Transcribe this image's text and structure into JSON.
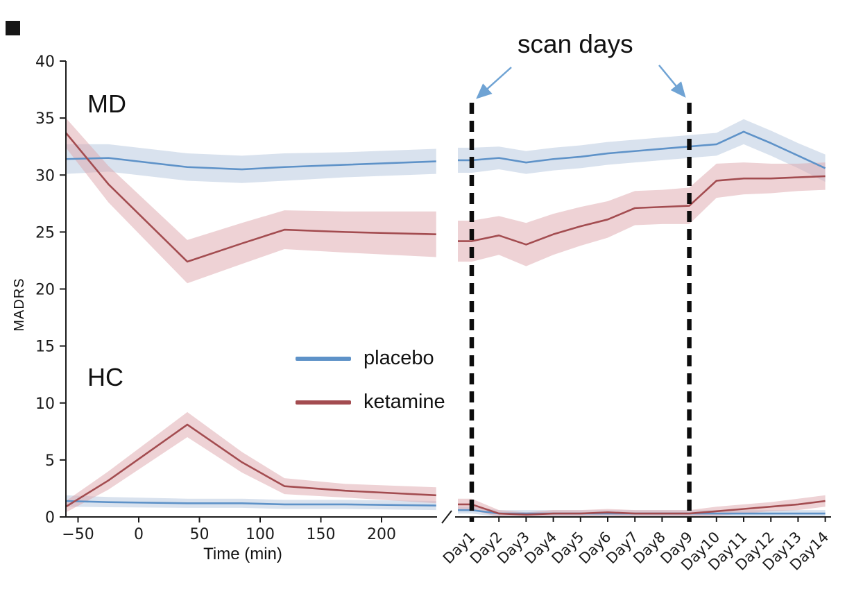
{
  "figure": {
    "md_label": "MD",
    "hc_label": "HC",
    "ylabel": "MADRS",
    "xlabel_left": "Time (min)",
    "scan_annotation": "scan days",
    "legend": {
      "placebo": "placebo",
      "ketamine": "ketamine"
    }
  },
  "colors": {
    "placebo_line": "#5e92c8",
    "placebo_band": "#b3c6dd",
    "ketamine_line": "#a34c50",
    "ketamine_band": "#dda6ab",
    "scan_line": "#0c0c0c",
    "arrow": "#6fa3d4",
    "axis": "#1a1a1a",
    "tick_text": "#1a1a1a"
  },
  "chart_data": [
    {
      "panel": "acute-timecourse",
      "type": "line",
      "title": "",
      "xlabel": "Time (min)",
      "ylabel": "MADRS",
      "ylim": [
        0,
        40
      ],
      "yticks": [
        0,
        5,
        10,
        15,
        20,
        25,
        30,
        35,
        40
      ],
      "xticks": [
        -50,
        0,
        50,
        100,
        150,
        200
      ],
      "x": [
        -60,
        -25,
        40,
        85,
        120,
        170,
        245
      ],
      "grid": false,
      "series": [
        {
          "name": "MD placebo",
          "color_key": "placebo",
          "values": [
            31.4,
            31.5,
            30.7,
            30.5,
            30.7,
            30.9,
            31.2
          ],
          "err": [
            1.3,
            1.2,
            1.2,
            1.2,
            1.2,
            1.1,
            1.1
          ]
        },
        {
          "name": "MD ketamine",
          "color_key": "ketamine",
          "values": [
            33.7,
            29.2,
            22.4,
            24.0,
            25.2,
            25.0,
            24.8
          ],
          "err": [
            1.3,
            1.6,
            1.9,
            1.8,
            1.7,
            1.8,
            2.0
          ]
        },
        {
          "name": "HC placebo",
          "color_key": "placebo",
          "values": [
            1.4,
            1.3,
            1.2,
            1.2,
            1.1,
            1.1,
            1.0
          ],
          "err": [
            0.5,
            0.45,
            0.4,
            0.4,
            0.4,
            0.4,
            0.4
          ]
        },
        {
          "name": "HC ketamine",
          "color_key": "ketamine",
          "values": [
            0.9,
            3.2,
            8.1,
            4.8,
            2.7,
            2.3,
            1.9
          ],
          "err": [
            0.5,
            0.8,
            1.1,
            0.9,
            0.7,
            0.6,
            0.7
          ]
        }
      ]
    },
    {
      "panel": "followup-days",
      "type": "line",
      "ylim": [
        0,
        40
      ],
      "categories": [
        "Day1",
        "Day2",
        "Day3",
        "Day4",
        "Day5",
        "Day6",
        "Day7",
        "Day8",
        "Day9",
        "Day10",
        "Day11",
        "Day12",
        "Day13",
        "Day14"
      ],
      "grid": false,
      "annotation": "scan days",
      "scan_day_markers": [
        "Day1",
        "Day9"
      ],
      "series": [
        {
          "name": "MD placebo",
          "color_key": "placebo",
          "values": [
            31.3,
            31.5,
            31.1,
            31.4,
            31.6,
            31.9,
            32.1,
            32.3,
            32.5,
            32.7,
            33.8,
            32.8,
            31.7,
            30.6
          ],
          "err": [
            1.1,
            1.0,
            1.0,
            1.0,
            1.0,
            1.0,
            1.0,
            1.0,
            1.0,
            1.0,
            1.1,
            1.1,
            1.1,
            1.2
          ]
        },
        {
          "name": "MD ketamine",
          "color_key": "ketamine",
          "values": [
            24.2,
            24.7,
            23.9,
            24.8,
            25.5,
            26.1,
            27.1,
            27.2,
            27.3,
            29.5,
            29.7,
            29.7,
            29.8,
            29.9
          ],
          "err": [
            1.8,
            1.7,
            1.9,
            1.8,
            1.7,
            1.6,
            1.5,
            1.5,
            1.6,
            1.5,
            1.4,
            1.3,
            1.2,
            1.2
          ]
        },
        {
          "name": "HC placebo",
          "color_key": "placebo",
          "values": [
            0.6,
            0.3,
            0.3,
            0.3,
            0.3,
            0.3,
            0.3,
            0.3,
            0.3,
            0.3,
            0.3,
            0.3,
            0.3,
            0.3
          ],
          "err": [
            0.3,
            0.3,
            0.3,
            0.3,
            0.3,
            0.3,
            0.3,
            0.3,
            0.3,
            0.3,
            0.3,
            0.3,
            0.3,
            0.3
          ]
        },
        {
          "name": "HC ketamine",
          "color_key": "ketamine",
          "values": [
            1.1,
            0.3,
            0.2,
            0.3,
            0.3,
            0.4,
            0.3,
            0.3,
            0.3,
            0.5,
            0.7,
            0.9,
            1.1,
            1.4
          ],
          "err": [
            0.5,
            0.3,
            0.2,
            0.3,
            0.3,
            0.3,
            0.3,
            0.3,
            0.3,
            0.4,
            0.4,
            0.4,
            0.5,
            0.5
          ]
        }
      ]
    }
  ]
}
